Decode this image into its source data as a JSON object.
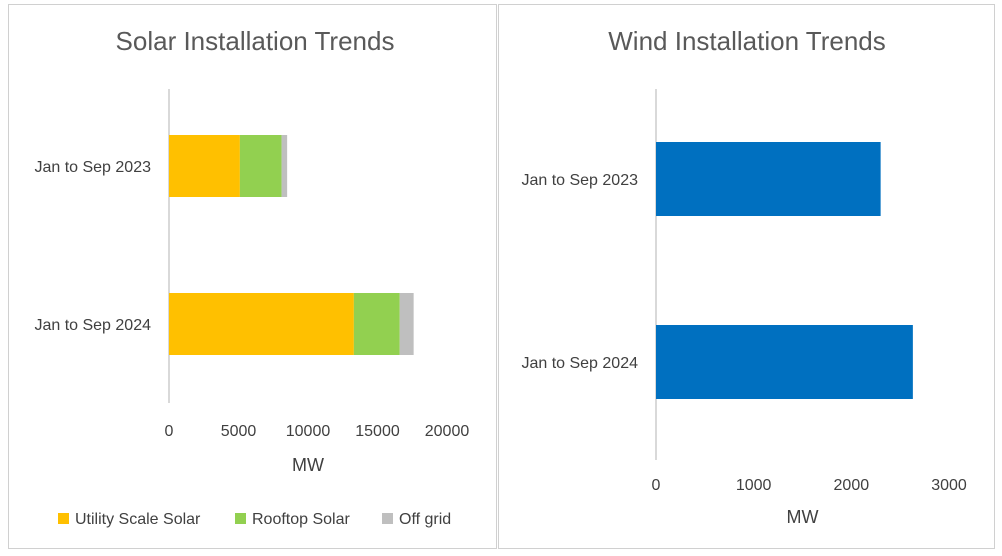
{
  "chart_data": [
    {
      "type": "bar",
      "orientation": "horizontal",
      "stacked": true,
      "title": "Solar Installation Trends",
      "xlabel": "MW",
      "ylabel": "",
      "categories": [
        "Jan to Sep 2023",
        "Jan to Sep 2024"
      ],
      "series": [
        {
          "name": "Utility Scale Solar",
          "color": "#ffc000",
          "values": [
            5100,
            13300
          ]
        },
        {
          "name": "Rooftop Solar",
          "color": "#92d050",
          "values": [
            3000,
            3300
          ]
        },
        {
          "name": "Off grid",
          "color": "#bfbfbf",
          "values": [
            400,
            1000
          ]
        }
      ],
      "xlim": [
        0,
        20000
      ],
      "xticks": [
        "0",
        "5000",
        "10000",
        "15000",
        "20000"
      ],
      "legend": "bottom",
      "grid": false
    },
    {
      "type": "bar",
      "orientation": "horizontal",
      "stacked": false,
      "title": "Wind Installation Trends",
      "xlabel": "MW",
      "ylabel": "",
      "categories": [
        "Jan to Sep 2023",
        "Jan to Sep 2024"
      ],
      "series": [
        {
          "color": "#0070c0",
          "values": [
            2300,
            2630
          ]
        }
      ],
      "xlim": [
        0,
        3000
      ],
      "xticks": [
        "0",
        "1000",
        "2000",
        "3000"
      ],
      "legend": "none",
      "grid": false
    }
  ]
}
